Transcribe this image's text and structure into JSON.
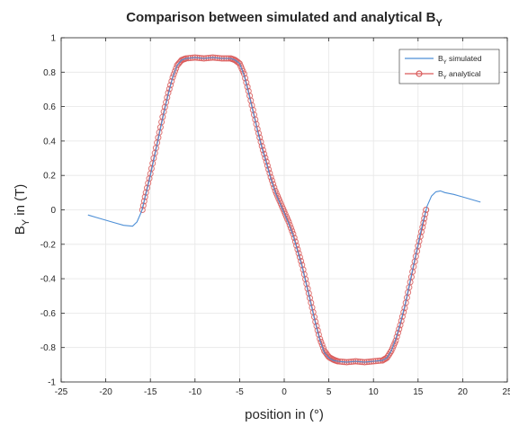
{
  "chart_data": {
    "type": "line",
    "title": {
      "main": "Comparison between simulated and analytical B",
      "sub": "Y"
    },
    "xlabel": "position in (°)",
    "ylabel": {
      "prefix": "B",
      "sub": "Y",
      "suffix": " in (T)"
    },
    "xlim": [
      -25,
      25
    ],
    "ylim": [
      -1,
      1
    ],
    "xticks": [
      -25,
      -20,
      -15,
      -10,
      -5,
      0,
      5,
      10,
      15,
      20,
      25
    ],
    "yticks": [
      -1,
      -0.8,
      -0.6,
      -0.4,
      -0.2,
      0,
      0.2,
      0.4,
      0.6,
      0.8,
      1
    ],
    "xtick_labels": [
      "-25",
      "-20",
      "-15",
      "-10",
      "-5",
      "0",
      "5",
      "10",
      "15",
      "20",
      "25"
    ],
    "ytick_labels": [
      "-1",
      "-0.8",
      "-0.6",
      "-0.4",
      "-0.2",
      "0",
      "0.2",
      "0.4",
      "0.6",
      "0.8",
      "1"
    ],
    "grid": true,
    "legend_position": "top-right",
    "series": [
      {
        "name": {
          "prefix": "B",
          "sub": "Y",
          "suffix": " simulated"
        },
        "color": "#4d8fd6",
        "marker": "none",
        "x": [
          -22,
          -21,
          -20,
          -19,
          -18,
          -17,
          -16.5,
          -16,
          -15.5,
          -15,
          -14.5,
          -14,
          -13.5,
          -13,
          -12.5,
          -12,
          -11.5,
          -11,
          -10,
          -9,
          -8,
          -7,
          -6,
          -5.5,
          -5,
          -4.5,
          -4,
          -3.5,
          -3,
          -2.5,
          -2,
          -1.5,
          -1,
          -0.5,
          0,
          0.5,
          1,
          1.5,
          2,
          2.5,
          3,
          3.5,
          4,
          4.5,
          5,
          5.5,
          6,
          7,
          8,
          9,
          10,
          11,
          11.5,
          12,
          12.5,
          13,
          13.5,
          14,
          14.5,
          15,
          15.5,
          16,
          16.5,
          17,
          17.5,
          18,
          19,
          20,
          21,
          22
        ],
        "y": [
          -0.03,
          -0.045,
          -0.06,
          -0.075,
          -0.09,
          -0.095,
          -0.07,
          -0.01,
          0.09,
          0.2,
          0.32,
          0.44,
          0.56,
          0.67,
          0.77,
          0.84,
          0.87,
          0.88,
          0.885,
          0.88,
          0.885,
          0.88,
          0.88,
          0.87,
          0.85,
          0.78,
          0.68,
          0.57,
          0.46,
          0.36,
          0.27,
          0.18,
          0.1,
          0.04,
          -0.02,
          -0.08,
          -0.15,
          -0.24,
          -0.33,
          -0.44,
          -0.55,
          -0.66,
          -0.76,
          -0.83,
          -0.86,
          -0.875,
          -0.88,
          -0.885,
          -0.88,
          -0.885,
          -0.88,
          -0.875,
          -0.86,
          -0.82,
          -0.75,
          -0.66,
          -0.56,
          -0.44,
          -0.32,
          -0.2,
          -0.08,
          0.02,
          0.08,
          0.105,
          0.11,
          0.1,
          0.09,
          0.075,
          0.06,
          0.045
        ]
      },
      {
        "name": {
          "prefix": "B",
          "sub": "Y",
          "suffix": " analytical"
        },
        "color": "#d95b5b",
        "marker": "circle",
        "x": [
          -15.9,
          -15.5,
          -15,
          -14.5,
          -14,
          -13.5,
          -13,
          -12.5,
          -12,
          -11.5,
          -11,
          -10,
          -9,
          -8,
          -7,
          -6,
          -5.5,
          -5,
          -4.5,
          -4,
          -3.5,
          -3,
          -2.5,
          -2,
          -1.5,
          -1,
          -0.5,
          0,
          0.5,
          1,
          1.5,
          2,
          2.5,
          3,
          3.5,
          4,
          4.5,
          5,
          5.5,
          6,
          7,
          8,
          9,
          10,
          11,
          11.5,
          12,
          12.5,
          13,
          13.5,
          14,
          14.5,
          15,
          15.5,
          15.9
        ],
        "y": [
          0.0,
          0.1,
          0.21,
          0.33,
          0.45,
          0.57,
          0.68,
          0.77,
          0.84,
          0.87,
          0.88,
          0.885,
          0.88,
          0.885,
          0.88,
          0.88,
          0.87,
          0.85,
          0.79,
          0.69,
          0.58,
          0.47,
          0.37,
          0.28,
          0.19,
          0.11,
          0.05,
          -0.01,
          -0.07,
          -0.14,
          -0.23,
          -0.32,
          -0.43,
          -0.54,
          -0.65,
          -0.75,
          -0.82,
          -0.855,
          -0.87,
          -0.88,
          -0.885,
          -0.88,
          -0.885,
          -0.88,
          -0.875,
          -0.86,
          -0.82,
          -0.76,
          -0.67,
          -0.57,
          -0.45,
          -0.33,
          -0.21,
          -0.1,
          0.0
        ]
      }
    ]
  }
}
